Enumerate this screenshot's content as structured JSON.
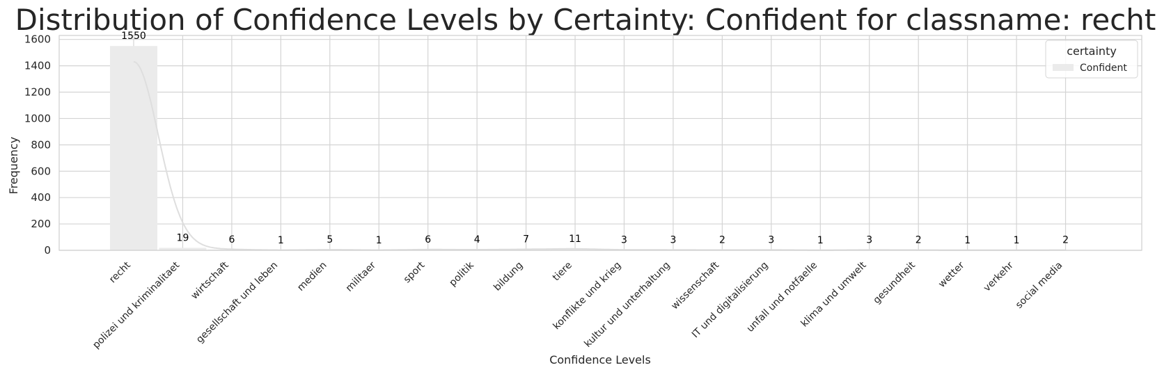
{
  "chart_data": {
    "type": "bar",
    "title": "Distribution of Confidence Levels by Certainty: Confident for classname: recht",
    "xlabel": "Confidence Levels",
    "ylabel": "Frequency",
    "ylim": [
      0,
      1630
    ],
    "yticks": [
      0,
      200,
      400,
      600,
      800,
      1000,
      1200,
      1400,
      1600
    ],
    "grid": true,
    "kde_line": true,
    "legend": {
      "title": "certainty",
      "placement": "top-right"
    },
    "categories": [
      "recht",
      "polizei und kriminalitaet",
      "wirtschaft",
      "gesellschaft und leben",
      "medien",
      "militaer",
      "sport",
      "politik",
      "bildung",
      "tiere",
      "konflikte und krieg",
      "kultur und unterhaltung",
      "wissenschaft",
      "IT und digitalisierung",
      "unfall und notfaelle",
      "klima und umwelt",
      "gesundheit",
      "wetter",
      "verkehr",
      "social media"
    ],
    "series": [
      {
        "name": "Confident",
        "color": "#ebebeb",
        "values": [
          1550,
          19,
          6,
          1,
          5,
          1,
          6,
          4,
          7,
          11,
          3,
          3,
          2,
          3,
          1,
          3,
          2,
          1,
          1,
          2
        ]
      }
    ],
    "colors": {
      "bar": "#ebebeb",
      "kde": "#dedede",
      "grid": "#d4d4d4",
      "frame": "#cfcfcf",
      "text": "#262626"
    }
  }
}
